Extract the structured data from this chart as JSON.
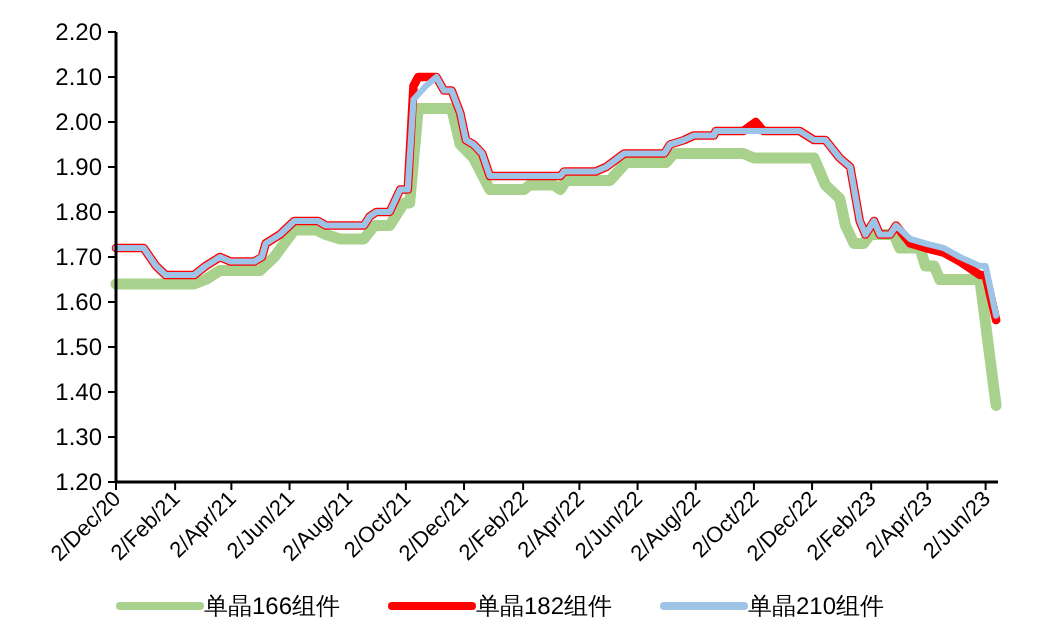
{
  "chart_data": {
    "type": "line",
    "xlim": [
      "2020-12-02",
      "2023-06-15"
    ],
    "ylim": [
      1.2,
      2.2
    ],
    "xticks": [
      {
        "value": "2020-12-02",
        "label": "2/Dec/20"
      },
      {
        "value": "2021-02-02",
        "label": "2/Feb/21"
      },
      {
        "value": "2021-04-02",
        "label": "2/Apr/21"
      },
      {
        "value": "2021-06-02",
        "label": "2/Jun/21"
      },
      {
        "value": "2021-08-02",
        "label": "2/Aug/21"
      },
      {
        "value": "2021-10-02",
        "label": "2/Oct/21"
      },
      {
        "value": "2021-12-02",
        "label": "2/Dec/21"
      },
      {
        "value": "2022-02-02",
        "label": "2/Feb/22"
      },
      {
        "value": "2022-04-02",
        "label": "2/Apr/22"
      },
      {
        "value": "2022-06-02",
        "label": "2/Jun/22"
      },
      {
        "value": "2022-08-02",
        "label": "2/Aug/22"
      },
      {
        "value": "2022-10-02",
        "label": "2/Oct/22"
      },
      {
        "value": "2022-12-02",
        "label": "2/Dec/22"
      },
      {
        "value": "2023-02-02",
        "label": "2/Feb/23"
      },
      {
        "value": "2023-04-02",
        "label": "2/Apr/23"
      },
      {
        "value": "2023-06-02",
        "label": "2/Jun/23"
      }
    ],
    "yticks": [
      {
        "value": 1.2,
        "label": "1.20"
      },
      {
        "value": 1.3,
        "label": "1.30"
      },
      {
        "value": 1.4,
        "label": "1.40"
      },
      {
        "value": 1.5,
        "label": "1.50"
      },
      {
        "value": 1.6,
        "label": "1.60"
      },
      {
        "value": 1.7,
        "label": "1.70"
      },
      {
        "value": 1.8,
        "label": "1.80"
      },
      {
        "value": 1.9,
        "label": "1.90"
      },
      {
        "value": 2.0,
        "label": "2.00"
      },
      {
        "value": 2.1,
        "label": "2.10"
      },
      {
        "value": 2.2,
        "label": "2.20"
      }
    ],
    "grid": false,
    "legend": "bottom",
    "series": [
      {
        "name": "单晶166组件",
        "color": "#a9d18e",
        "x": [
          "2020-12-02",
          "2021-02-22",
          "2021-03-06",
          "2021-03-21",
          "2021-05-02",
          "2021-05-17",
          "2021-06-07",
          "2021-06-30",
          "2021-07-10",
          "2021-07-25",
          "2021-08-19",
          "2021-08-30",
          "2021-09-15",
          "2021-09-30",
          "2021-10-06",
          "2021-10-15",
          "2021-11-19",
          "2021-11-28",
          "2021-12-12",
          "2021-12-29",
          "2022-02-03",
          "2022-02-09",
          "2022-03-06",
          "2022-03-13",
          "2022-03-19",
          "2022-05-04",
          "2022-05-21",
          "2022-07-02",
          "2022-07-10",
          "2022-09-21",
          "2022-10-02",
          "2022-12-04",
          "2022-12-16",
          "2022-12-31",
          "2023-01-06",
          "2023-01-15",
          "2023-01-25",
          "2023-02-01",
          "2023-02-26",
          "2023-03-04",
          "2023-03-25",
          "2023-03-31",
          "2023-04-09",
          "2023-04-15",
          "2023-05-27",
          "2023-06-13"
        ],
        "values": [
          1.64,
          1.64,
          1.65,
          1.67,
          1.67,
          1.7,
          1.76,
          1.76,
          1.75,
          1.74,
          1.74,
          1.77,
          1.77,
          1.82,
          1.82,
          2.03,
          2.03,
          1.95,
          1.92,
          1.85,
          1.85,
          1.86,
          1.86,
          1.85,
          1.87,
          1.87,
          1.91,
          1.91,
          1.93,
          1.93,
          1.92,
          1.92,
          1.86,
          1.83,
          1.77,
          1.73,
          1.73,
          1.75,
          1.75,
          1.72,
          1.72,
          1.68,
          1.68,
          1.65,
          1.65,
          1.37
        ]
      },
      {
        "name": "单晶182组件",
        "color": "#ff0000",
        "x": [
          "2020-12-02",
          "2020-12-31",
          "2021-01-13",
          "2021-01-23",
          "2021-02-22",
          "2021-03-06",
          "2021-03-21",
          "2021-04-01",
          "2021-04-26",
          "2021-05-04",
          "2021-05-08",
          "2021-05-23",
          "2021-06-07",
          "2021-07-02",
          "2021-07-10",
          "2021-08-19",
          "2021-08-25",
          "2021-09-01",
          "2021-09-15",
          "2021-09-26",
          "2021-10-04",
          "2021-10-10",
          "2021-10-15",
          "2021-11-03",
          "2021-11-11",
          "2021-11-19",
          "2021-11-28",
          "2021-12-04",
          "2021-12-12",
          "2021-12-21",
          "2021-12-29",
          "2022-03-13",
          "2022-03-17",
          "2022-04-19",
          "2022-04-30",
          "2022-05-19",
          "2022-06-30",
          "2022-07-06",
          "2022-07-21",
          "2022-07-31",
          "2022-08-21",
          "2022-08-23",
          "2022-09-21",
          "2022-10-04",
          "2022-10-12",
          "2022-11-19",
          "2022-12-04",
          "2022-12-16",
          "2022-12-31",
          "2023-01-11",
          "2023-01-21",
          "2023-01-27",
          "2023-02-05",
          "2023-02-11",
          "2023-02-22",
          "2023-02-28",
          "2023-03-15",
          "2023-03-31",
          "2023-04-19",
          "2023-05-06",
          "2023-05-27",
          "2023-06-02",
          "2023-06-13"
        ],
        "values": [
          1.72,
          1.72,
          1.68,
          1.66,
          1.66,
          1.68,
          1.7,
          1.69,
          1.69,
          1.7,
          1.73,
          1.75,
          1.78,
          1.78,
          1.77,
          1.77,
          1.79,
          1.8,
          1.8,
          1.85,
          1.85,
          2.08,
          2.1,
          2.1,
          2.07,
          2.07,
          2.02,
          1.96,
          1.95,
          1.93,
          1.88,
          1.88,
          1.89,
          1.89,
          1.9,
          1.93,
          1.93,
          1.95,
          1.96,
          1.97,
          1.97,
          1.98,
          1.98,
          2.0,
          1.98,
          1.98,
          1.96,
          1.96,
          1.92,
          1.9,
          1.78,
          1.75,
          1.78,
          1.75,
          1.75,
          1.77,
          1.73,
          1.72,
          1.71,
          1.69,
          1.66,
          1.66,
          1.56
        ]
      },
      {
        "name": "单晶210组件",
        "color": "#9dc3e6",
        "x": [
          "2020-12-02",
          "2020-12-31",
          "2021-01-13",
          "2021-01-23",
          "2021-02-22",
          "2021-03-06",
          "2021-03-21",
          "2021-04-01",
          "2021-04-26",
          "2021-05-04",
          "2021-05-08",
          "2021-05-23",
          "2021-06-07",
          "2021-07-02",
          "2021-07-10",
          "2021-08-19",
          "2021-08-25",
          "2021-09-01",
          "2021-09-15",
          "2021-09-26",
          "2021-10-04",
          "2021-10-10",
          "2021-10-23",
          "2021-11-03",
          "2021-11-11",
          "2021-11-19",
          "2021-11-28",
          "2021-12-04",
          "2021-12-12",
          "2021-12-21",
          "2021-12-29",
          "2022-03-13",
          "2022-03-17",
          "2022-04-19",
          "2022-04-30",
          "2022-05-19",
          "2022-06-30",
          "2022-07-06",
          "2022-07-21",
          "2022-07-31",
          "2022-08-21",
          "2022-08-23",
          "2022-10-12",
          "2022-11-19",
          "2022-12-04",
          "2022-12-16",
          "2022-12-31",
          "2023-01-11",
          "2023-01-21",
          "2023-01-27",
          "2023-02-05",
          "2023-02-11",
          "2023-02-22",
          "2023-02-28",
          "2023-03-15",
          "2023-03-31",
          "2023-04-19",
          "2023-05-06",
          "2023-05-27",
          "2023-06-02",
          "2023-06-13"
        ],
        "values": [
          1.72,
          1.72,
          1.68,
          1.66,
          1.66,
          1.68,
          1.7,
          1.69,
          1.69,
          1.7,
          1.73,
          1.75,
          1.78,
          1.78,
          1.77,
          1.77,
          1.79,
          1.8,
          1.8,
          1.85,
          1.85,
          2.05,
          2.08,
          2.1,
          2.07,
          2.07,
          2.02,
          1.96,
          1.95,
          1.93,
          1.88,
          1.88,
          1.89,
          1.89,
          1.9,
          1.93,
          1.93,
          1.95,
          1.96,
          1.97,
          1.97,
          1.98,
          1.98,
          1.98,
          1.96,
          1.96,
          1.92,
          1.9,
          1.78,
          1.75,
          1.78,
          1.75,
          1.75,
          1.77,
          1.74,
          1.73,
          1.72,
          1.7,
          1.68,
          1.68,
          1.57
        ]
      }
    ]
  }
}
